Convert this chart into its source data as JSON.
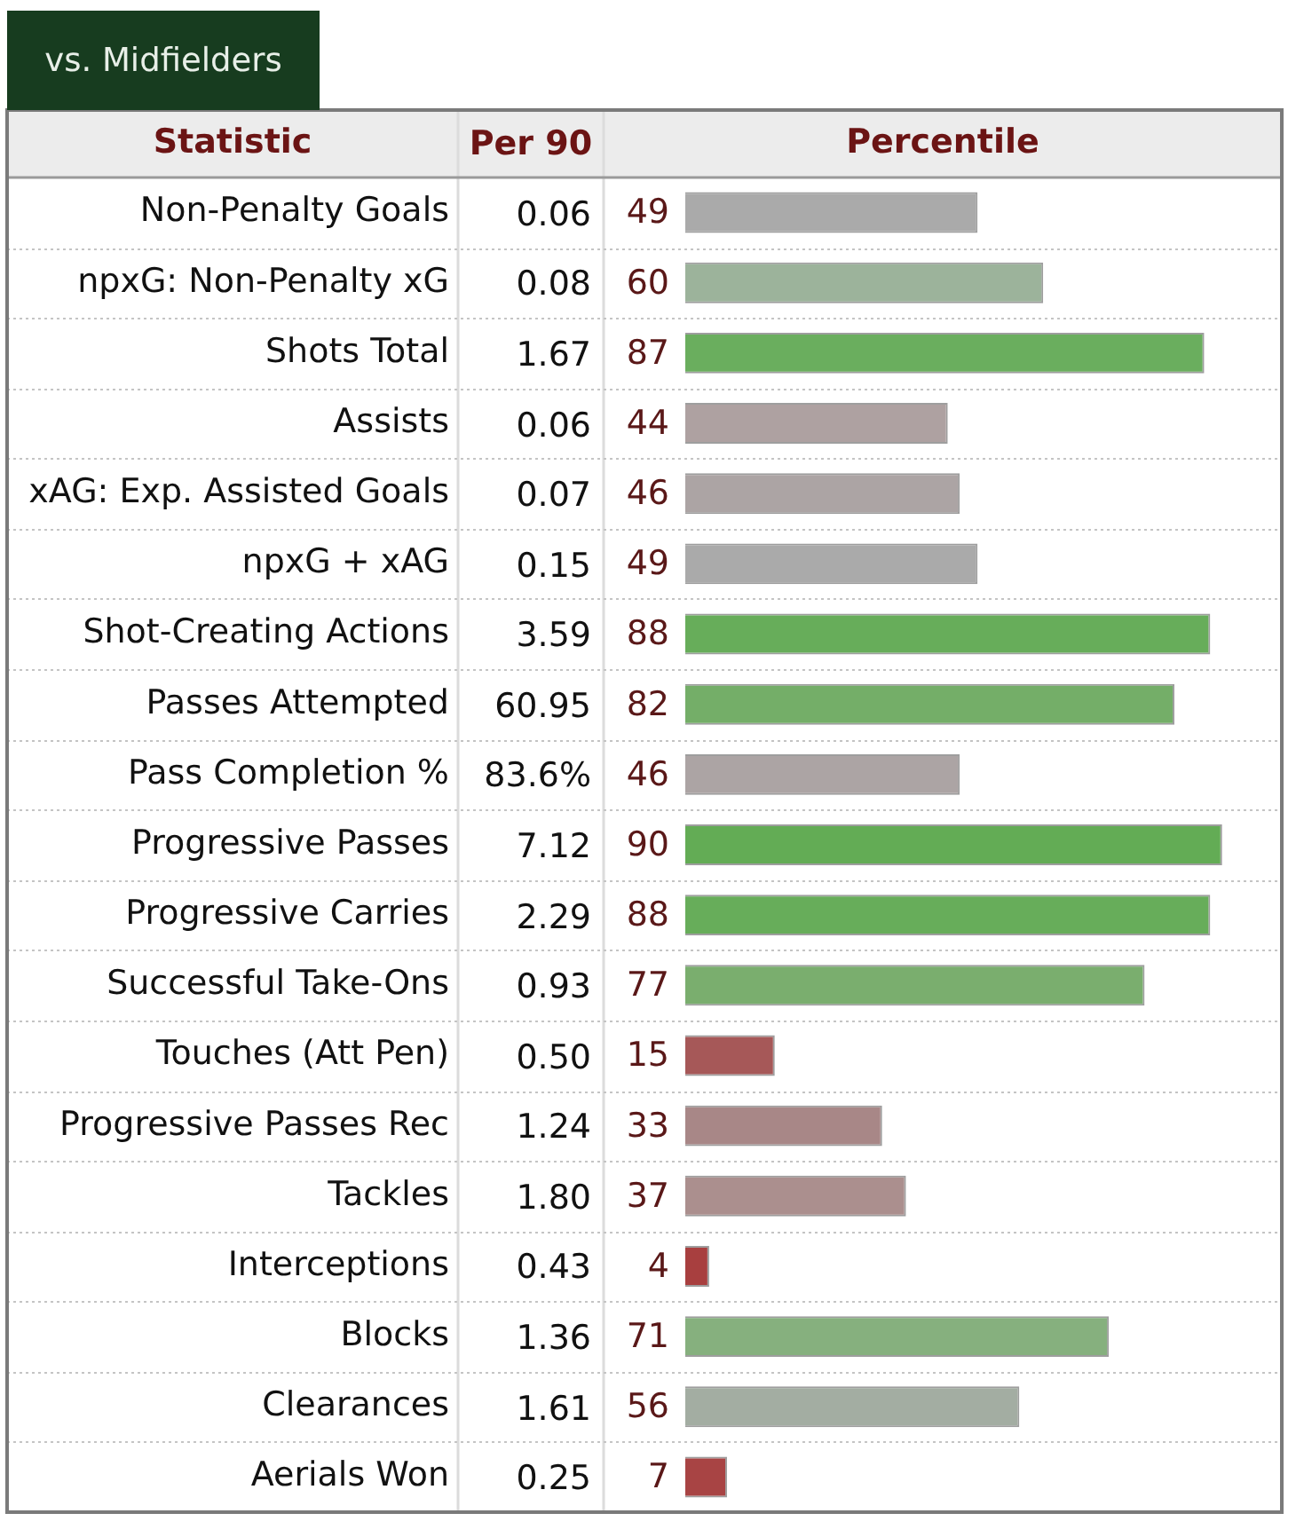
{
  "chart_data": [
    {
      "type": "bar",
      "orientation": "horizontal",
      "title": "vs. Midfielders",
      "ylabel": "Statistic",
      "xlabel": "Percentile",
      "categories": [
        "Non-Penalty Goals",
        "npxG: Non-Penalty xG",
        "Shots Total",
        "Assists",
        "xAG: Exp. Assisted Goals",
        "npxG + xAG",
        "Shot-Creating Actions",
        "Passes Attempted",
        "Pass Completion %",
        "Progressive Passes",
        "Progressive Carries",
        "Successful Take-Ons",
        "Touches (Att Pen)",
        "Progressive Passes Rec",
        "Tackles",
        "Interceptions",
        "Blocks",
        "Clearances",
        "Aerials Won"
      ],
      "values": [
        49,
        60,
        87,
        44,
        46,
        49,
        88,
        82,
        46,
        90,
        88,
        77,
        15,
        33,
        37,
        4,
        71,
        56,
        7
      ],
      "colors": [
        "#aaaaaa",
        "#9cb39b",
        "#6aae5e",
        "#aea1a1",
        "#aca4a4",
        "#aaaaaa",
        "#67ad5a",
        "#74ae68",
        "#aca4a4",
        "#63ac55",
        "#67ad5a",
        "#7aae6e",
        "#a65858",
        "#a88787",
        "#ab8f8e",
        "#a83f3f",
        "#86b07e",
        "#a3ada2",
        "#a84444"
      ],
      "xlim": [
        0,
        100
      ],
      "tick_labels": "y",
      "grid": "y",
      "data_labels": true
    },
    {
      "type": "other",
      "title": "Per 90",
      "values": [
        0.06,
        0.08,
        1.67,
        0.06,
        0.07,
        0.15,
        3.59,
        60.95,
        83.6,
        7.12,
        2.29,
        0.93,
        0.5,
        1.24,
        1.8,
        0.43,
        1.36,
        1.61,
        0.25
      ],
      "value_labels": [
        "0.06",
        "0.08",
        "1.67",
        "0.06",
        "0.07",
        "0.15",
        "3.59",
        "60.95",
        "83.6%",
        "7.12",
        "2.29",
        "0.93",
        "0.50",
        "1.24",
        "1.80",
        "0.43",
        "1.36",
        "1.61",
        "0.25"
      ]
    }
  ]
}
